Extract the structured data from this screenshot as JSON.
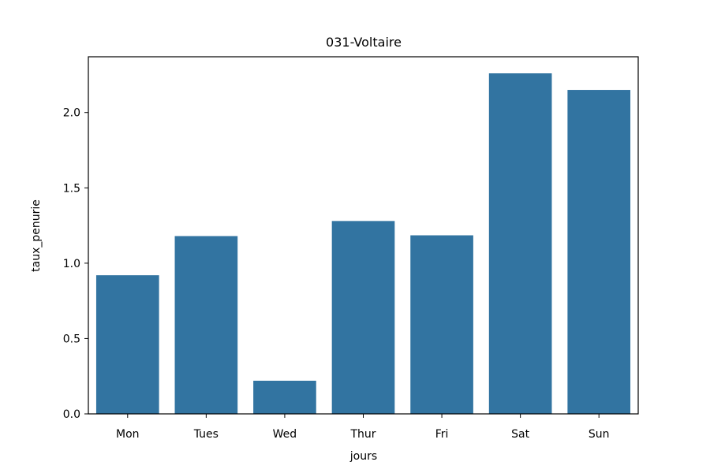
{
  "chart_data": {
    "type": "bar",
    "title": "031-Voltaire",
    "xlabel": "jours",
    "ylabel": "taux_penurie",
    "categories": [
      "Mon",
      "Tues",
      "Wed",
      "Thur",
      "Fri",
      "Sat",
      "Sun"
    ],
    "values": [
      0.92,
      1.18,
      0.22,
      1.28,
      1.185,
      2.26,
      2.15
    ],
    "ylim": [
      0,
      2.37
    ],
    "yticks": [
      0.0,
      0.5,
      1.0,
      1.5,
      2.0
    ],
    "ytick_labels": [
      "0.0",
      "0.5",
      "1.0",
      "1.5",
      "2.0"
    ],
    "bar_color": "#3274a1",
    "grid": false,
    "legend": "none"
  }
}
